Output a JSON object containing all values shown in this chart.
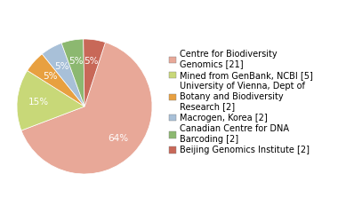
{
  "labels": [
    "Centre for Biodiversity\nGenomics [21]",
    "Mined from GenBank, NCBI [5]",
    "University of Vienna, Dept of\nBotany and Biodiversity\nResearch [2]",
    "Macrogen, Korea [2]",
    "Canadian Centre for DNA\nBarcoding [2]",
    "Beijing Genomics Institute [2]"
  ],
  "values": [
    61,
    14,
    5,
    5,
    5,
    5
  ],
  "colors": [
    "#e8a898",
    "#c8d878",
    "#e8a040",
    "#a8c0d8",
    "#8cb870",
    "#c86858"
  ],
  "startangle": 72,
  "legend_fontsize": 7.0,
  "autopct_fontsize": 7.5,
  "background_color": "#ffffff"
}
